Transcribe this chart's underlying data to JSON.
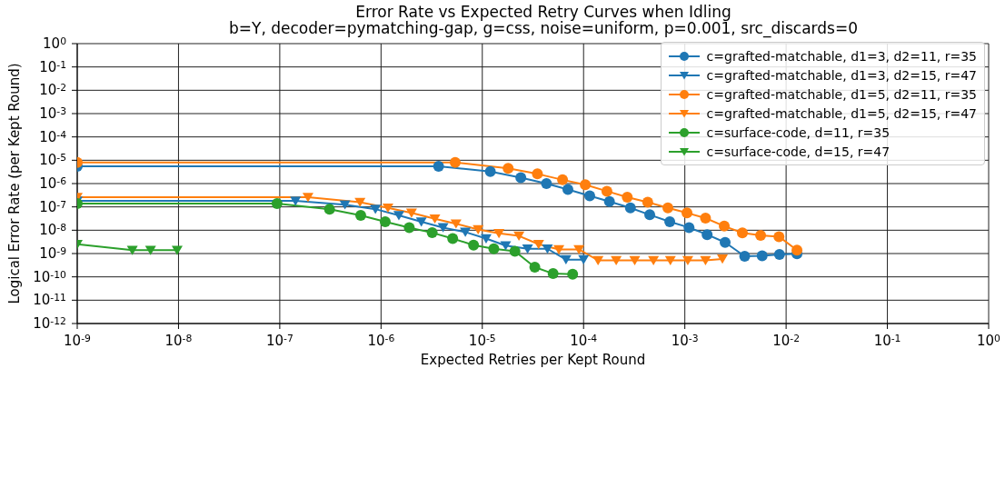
{
  "chart_data": {
    "type": "line",
    "title": "Error Rate vs Expected Retry Curves when Idling",
    "subtitle": "b=Y, decoder=pymatching-gap, g=css, noise=uniform, p=0.001, src_discards=0",
    "xlabel": "Expected Retries per Kept Round",
    "ylabel": "Logical Error Rate (per Kept Round)",
    "log": "xy",
    "grid": true,
    "legend": "top right",
    "xlim": [
      1e-09,
      1
    ],
    "ylim": [
      1e-12,
      1
    ],
    "xticks": [
      {
        "value": 1e-09,
        "label": "10$^{-9}$"
      },
      {
        "value": 1e-08,
        "label": "10$^{-8}$"
      },
      {
        "value": 1e-07,
        "label": "10$^{-7}$"
      },
      {
        "value": 1e-06,
        "label": "10$^{-6}$"
      },
      {
        "value": 1e-05,
        "label": "10$^{-5}$"
      },
      {
        "value": 0.0001,
        "label": "10$^{-4}$"
      },
      {
        "value": 0.001,
        "label": "10$^{-3}$"
      },
      {
        "value": 0.01,
        "label": "10$^{-2}$"
      },
      {
        "value": 0.1,
        "label": "10$^{-1}$"
      },
      {
        "value": 1,
        "label": "10$^{0}$"
      }
    ],
    "yticks": [
      {
        "value": 1e-12,
        "label": "10$^{-12}$"
      },
      {
        "value": 1e-11,
        "label": "10$^{-11}$"
      },
      {
        "value": 1e-10,
        "label": "10$^{-10}$"
      },
      {
        "value": 1e-09,
        "label": "10$^{-9}$"
      },
      {
        "value": 1e-08,
        "label": "10$^{-8}$"
      },
      {
        "value": 1e-07,
        "label": "10$^{-7}$"
      },
      {
        "value": 1e-06,
        "label": "10$^{-6}$"
      },
      {
        "value": 1e-05,
        "label": "10$^{-5}$"
      },
      {
        "value": 0.0001,
        "label": "10$^{-4}$"
      },
      {
        "value": 0.001,
        "label": "10$^{-3}$"
      },
      {
        "value": 0.01,
        "label": "10$^{-2}$"
      },
      {
        "value": 0.1,
        "label": "10$^{-1}$"
      },
      {
        "value": 1,
        "label": "10$^{0}$"
      }
    ],
    "series": [
      {
        "name": "c=grafted-matchable, d1=3, d2=11, r=35",
        "color": "#1f77b4",
        "marker": "circle",
        "x": [
          1e-09,
          3.7e-06,
          1.2e-05,
          2.4e-05,
          4.3e-05,
          7e-05,
          0.000115,
          0.00018,
          0.00029,
          0.00045,
          0.00071,
          0.0011,
          0.00166,
          0.0025,
          0.0039,
          0.0058,
          0.0086,
          0.0128
        ],
        "values": [
          5.5e-06,
          5.5e-06,
          3.3e-06,
          1.8e-06,
          1e-06,
          5.6e-07,
          3e-07,
          1.7e-07,
          9.1e-08,
          4.6e-08,
          2.3e-08,
          1.3e-08,
          6.5e-09,
          3e-09,
          7.6e-10,
          8e-10,
          9.1e-10,
          9.7e-10
        ]
      },
      {
        "name": "c=grafted-matchable, d1=3, d2=15, r=47",
        "color": "#1f77b4",
        "marker": "triangle",
        "x": [
          1e-09,
          1.43e-07,
          4.4e-07,
          8.8e-07,
          1.5e-06,
          2.5e-06,
          4.1e-06,
          6.8e-06,
          1.09e-05,
          1.7e-05,
          2.8e-05,
          4.4e-05,
          6.7e-05,
          0.0001
        ],
        "values": [
          1.8e-07,
          1.8e-07,
          1.25e-07,
          8e-08,
          4.3e-08,
          2.3e-08,
          1.3e-08,
          8.3e-09,
          4.4e-09,
          2.2e-09,
          1.6e-09,
          1.6e-09,
          5.5e-10,
          5.5e-10
        ]
      },
      {
        "name": "c=grafted-matchable, d1=5, d2=11, r=35",
        "color": "#ff7f0e",
        "marker": "circle",
        "x": [
          1e-09,
          5.4e-06,
          1.8e-05,
          3.5e-05,
          6.2e-05,
          0.000104,
          0.00017,
          0.00027,
          0.00043,
          0.00068,
          0.00105,
          0.0016,
          0.00245,
          0.0037,
          0.0056,
          0.0085,
          0.0128
        ],
        "values": [
          8e-06,
          8e-06,
          4.5e-06,
          2.6e-06,
          1.45e-06,
          8.9e-07,
          4.7e-07,
          2.6e-07,
          1.6e-07,
          9.1e-08,
          5.5e-08,
          3.3e-08,
          1.5e-08,
          7.7e-09,
          6e-09,
          5.3e-09,
          1.4e-09
        ]
      },
      {
        "name": "c=grafted-matchable, d1=5, d2=15, r=47",
        "color": "#ff7f0e",
        "marker": "triangle",
        "x": [
          1e-09,
          1.9e-07,
          6.2e-07,
          1.17e-06,
          2e-06,
          3.4e-06,
          5.5e-06,
          9.1e-06,
          1.46e-05,
          2.3e-05,
          3.6e-05,
          5.7e-05,
          9e-05,
          0.000139,
          0.00021,
          0.00032,
          0.00049,
          0.00072,
          0.00107,
          0.0016,
          0.00235
        ],
        "values": [
          2.6e-07,
          2.6e-07,
          1.6e-07,
          9.1e-08,
          5.5e-08,
          3.1e-08,
          1.9e-08,
          1.07e-08,
          7.3e-09,
          5.7e-09,
          2.5e-09,
          1.5e-09,
          1.5e-09,
          5.1e-10,
          5.1e-10,
          5.1e-10,
          5.1e-10,
          5.1e-10,
          5.1e-10,
          5.1e-10,
          5.9e-10
        ]
      },
      {
        "name": "c=surface-code, d=11, r=35",
        "color": "#2ca02c",
        "marker": "circle",
        "x": [
          1e-09,
          9.4e-08,
          3.1e-07,
          6.3e-07,
          1.1e-06,
          1.9e-06,
          3.2e-06,
          5.1e-06,
          8.2e-06,
          1.3e-05,
          2.1e-05,
          3.3e-05,
          5e-05,
          7.8e-05
        ],
        "values": [
          1.4e-07,
          1.4e-07,
          8e-08,
          4.3e-08,
          2.3e-08,
          1.3e-08,
          7.8e-09,
          4.4e-09,
          2.3e-09,
          1.6e-09,
          1.26e-09,
          2.6e-10,
          1.38e-10,
          1.3e-10
        ]
      },
      {
        "name": "c=surface-code, d=15, r=47",
        "color": "#2ca02c",
        "marker": "triangle",
        "x": [
          1e-09,
          3.5e-09,
          5.3e-09,
          9.7e-09
        ],
        "values": [
          2.5e-09,
          1.4e-09,
          1.4e-09,
          1.4e-09
        ]
      }
    ]
  }
}
